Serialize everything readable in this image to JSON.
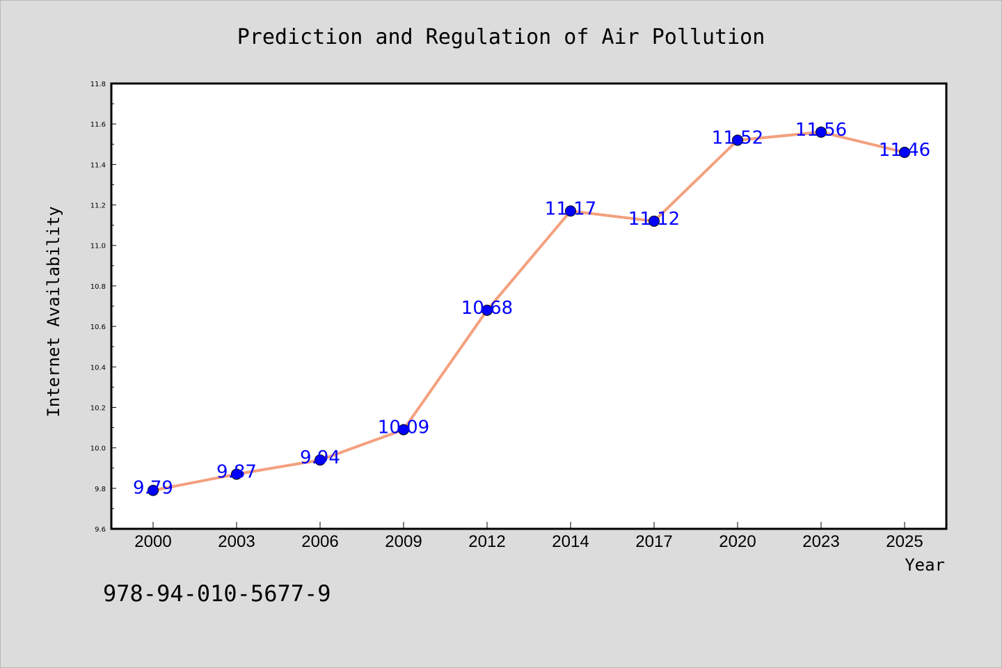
{
  "chart_data": {
    "type": "line",
    "title": "Prediction and Regulation of Air Pollution",
    "xlabel": "Year",
    "ylabel": "Internet Availability",
    "categories": [
      "2000",
      "2003",
      "2006",
      "2009",
      "2012",
      "2014",
      "2017",
      "2020",
      "2023",
      "2025"
    ],
    "values": [
      9.79,
      9.87,
      9.94,
      10.09,
      10.68,
      11.17,
      11.12,
      11.52,
      11.56,
      11.46
    ],
    "data_labels": [
      "9.79",
      "9.87",
      "9.94",
      "10.09",
      "10.68",
      "11.17",
      "11.12",
      "11.52",
      "11.56",
      "11.46"
    ],
    "ylim": [
      9.6,
      11.8
    ],
    "yticks": [
      "9.6",
      "9.8",
      "10.0",
      "10.2",
      "10.4",
      "10.6",
      "10.8",
      "11.0",
      "11.2",
      "11.4",
      "11.6",
      "11.8"
    ],
    "grid": false,
    "colors": {
      "line": "#f4a07e",
      "marker": "#0000ff",
      "label": "#0000ff",
      "background": "#dcdcdc",
      "plot_area": "#ffffff"
    }
  },
  "footnote": "978-94-010-5677-9"
}
